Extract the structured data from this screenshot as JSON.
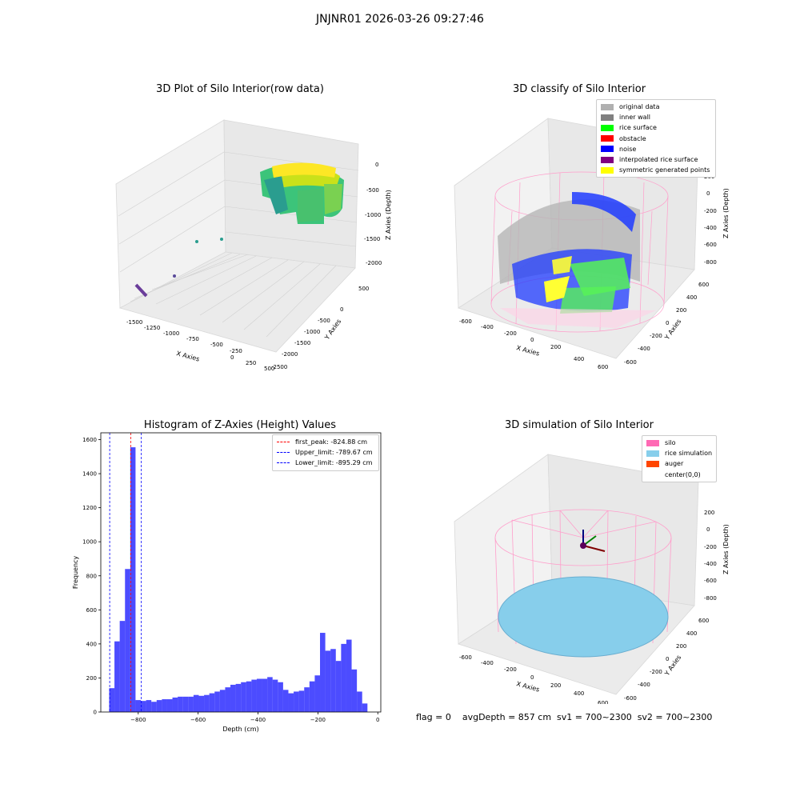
{
  "suptitle": "JNJNR01 2026-03-26 09:27:46",
  "panels": {
    "raw": {
      "title": "3D Plot of Silo Interior(row data)",
      "xlabel": "X Axies",
      "ylabel": "Y Axies",
      "zlabel": "Z Axies (Depth)",
      "xticks": [
        "-1500",
        "-1250",
        "-1000",
        "-750",
        "-500",
        "-250",
        "0",
        "250",
        "500"
      ],
      "yticks": [
        "500",
        "0",
        "-500",
        "-1000",
        "-1500",
        "-2000",
        "-2500"
      ],
      "zticks": [
        "0",
        "-500",
        "-1000",
        "-1500",
        "-2000"
      ]
    },
    "classify": {
      "title": "3D classify of Silo Interior",
      "xlabel": "X Axies",
      "ylabel": "Y Axies",
      "zlabel": "Z Axies (Depth)",
      "xticks": [
        "-600",
        "-400",
        "-200",
        "0",
        "200",
        "400",
        "600"
      ],
      "yticks": [
        "600",
        "400",
        "200",
        "0",
        "-200",
        "-400",
        "-600"
      ],
      "zticks": [
        "200",
        "0",
        "-200",
        "-400",
        "-600",
        "-800"
      ],
      "legend": [
        {
          "label": "original data",
          "color": "#b0b0b0"
        },
        {
          "label": "inner wall",
          "color": "#808080"
        },
        {
          "label": "rice surface",
          "color": "#00ff00"
        },
        {
          "label": "obstacle",
          "color": "#ff0000"
        },
        {
          "label": "noise",
          "color": "#0000ff"
        },
        {
          "label": "interpolated rice surface",
          "color": "#800080"
        },
        {
          "label": "symmetric generated points",
          "color": "#ffff00"
        }
      ]
    },
    "hist": {
      "title": "Histogram of Z-Axies (Height) Values",
      "xlabel": "Depth (cm)",
      "ylabel": "Frequency",
      "legend": [
        {
          "label": "first_peak: -824.88 cm",
          "color": "#ff0000"
        },
        {
          "label": "Upper_limit: -789.67 cm",
          "color": "#0000ff"
        },
        {
          "label": "Lower_limit: -895.29 cm",
          "color": "#0000ff"
        }
      ]
    },
    "sim": {
      "title": "3D simulation of Silo Interior",
      "xlabel": "X Axies",
      "ylabel": "Y Axies",
      "zlabel": "Z Axies (Depth)",
      "xticks": [
        "-600",
        "-400",
        "-200",
        "0",
        "200",
        "400",
        "600"
      ],
      "yticks": [
        "600",
        "400",
        "200",
        "0",
        "-200",
        "-400",
        "-600"
      ],
      "zticks": [
        "200",
        "0",
        "-200",
        "-400",
        "-600",
        "-800"
      ],
      "legend": [
        {
          "label": "silo",
          "color": "#ff69b4"
        },
        {
          "label": "rice simulation",
          "color": "#87ceeb"
        },
        {
          "label": "auger",
          "color": "#ff4500"
        },
        {
          "label": "center(0,0)",
          "color": "#ffffff"
        }
      ]
    }
  },
  "footer": "flag = 0    avgDepth = 857 cm  sv1 = 700~2300  sv2 = 700~2300",
  "chart_data": {
    "type": "bar",
    "title": "Histogram of Z-Axies (Height) Values",
    "xlabel": "Depth (cm)",
    "ylabel": "Frequency",
    "xlim": [
      -925,
      10
    ],
    "ylim": [
      0,
      1640
    ],
    "xticks": [
      -800,
      -600,
      -400,
      -200,
      0
    ],
    "yticks": [
      0,
      200,
      400,
      600,
      800,
      1000,
      1200,
      1400,
      1600
    ],
    "bin_width": 17.6,
    "bin_start": -897,
    "values": [
      140,
      415,
      535,
      840,
      1555,
      70,
      65,
      70,
      60,
      70,
      75,
      75,
      85,
      90,
      90,
      90,
      100,
      95,
      100,
      110,
      120,
      130,
      145,
      160,
      165,
      175,
      180,
      190,
      195,
      195,
      205,
      190,
      175,
      130,
      110,
      120,
      125,
      145,
      180,
      215,
      465,
      360,
      370,
      300,
      400,
      425,
      250,
      120,
      50
    ],
    "lines": [
      {
        "name": "first_peak: -824.88 cm",
        "x": -824.88,
        "color": "#ff0000"
      },
      {
        "name": "Upper_limit: -789.67 cm",
        "x": -789.67,
        "color": "#0000ff"
      },
      {
        "name": "Lower_limit: -895.29 cm",
        "x": -895.29,
        "color": "#0000ff"
      }
    ],
    "bar_color": "#0000ff",
    "bar_alpha": 0.7
  }
}
